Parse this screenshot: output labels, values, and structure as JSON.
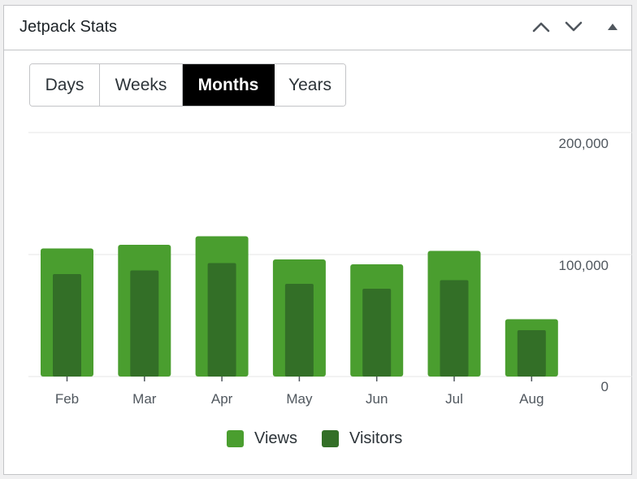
{
  "widget": {
    "title": "Jetpack Stats",
    "controls": {
      "move_up_icon": "chevron-up-icon",
      "move_down_icon": "chevron-down-icon",
      "toggle_icon": "triangle-up-icon"
    }
  },
  "tabs": [
    {
      "label": "Days",
      "active": false
    },
    {
      "label": "Weeks",
      "active": false
    },
    {
      "label": "Months",
      "active": true
    },
    {
      "label": "Years",
      "active": false
    }
  ],
  "colors": {
    "views": "#4a9e2f",
    "visitors": "#336f27",
    "active_tab_bg": "#000000"
  },
  "chart_data": {
    "type": "bar",
    "categories": [
      "Feb",
      "Mar",
      "Apr",
      "May",
      "Jun",
      "Jul",
      "Aug"
    ],
    "series": [
      {
        "name": "Views",
        "values": [
          105000,
          108000,
          115000,
          96000,
          92000,
          103000,
          47000
        ]
      },
      {
        "name": "Visitors",
        "values": [
          84000,
          87000,
          93000,
          76000,
          72000,
          79000,
          38000
        ]
      }
    ],
    "y_ticks": [
      "200,000",
      "100,000",
      "0"
    ],
    "ylim": [
      0,
      200000
    ],
    "grid": true,
    "legend": "bottom-center",
    "y_axis_side": "right"
  },
  "legend": [
    {
      "label": "Views"
    },
    {
      "label": "Visitors"
    }
  ]
}
